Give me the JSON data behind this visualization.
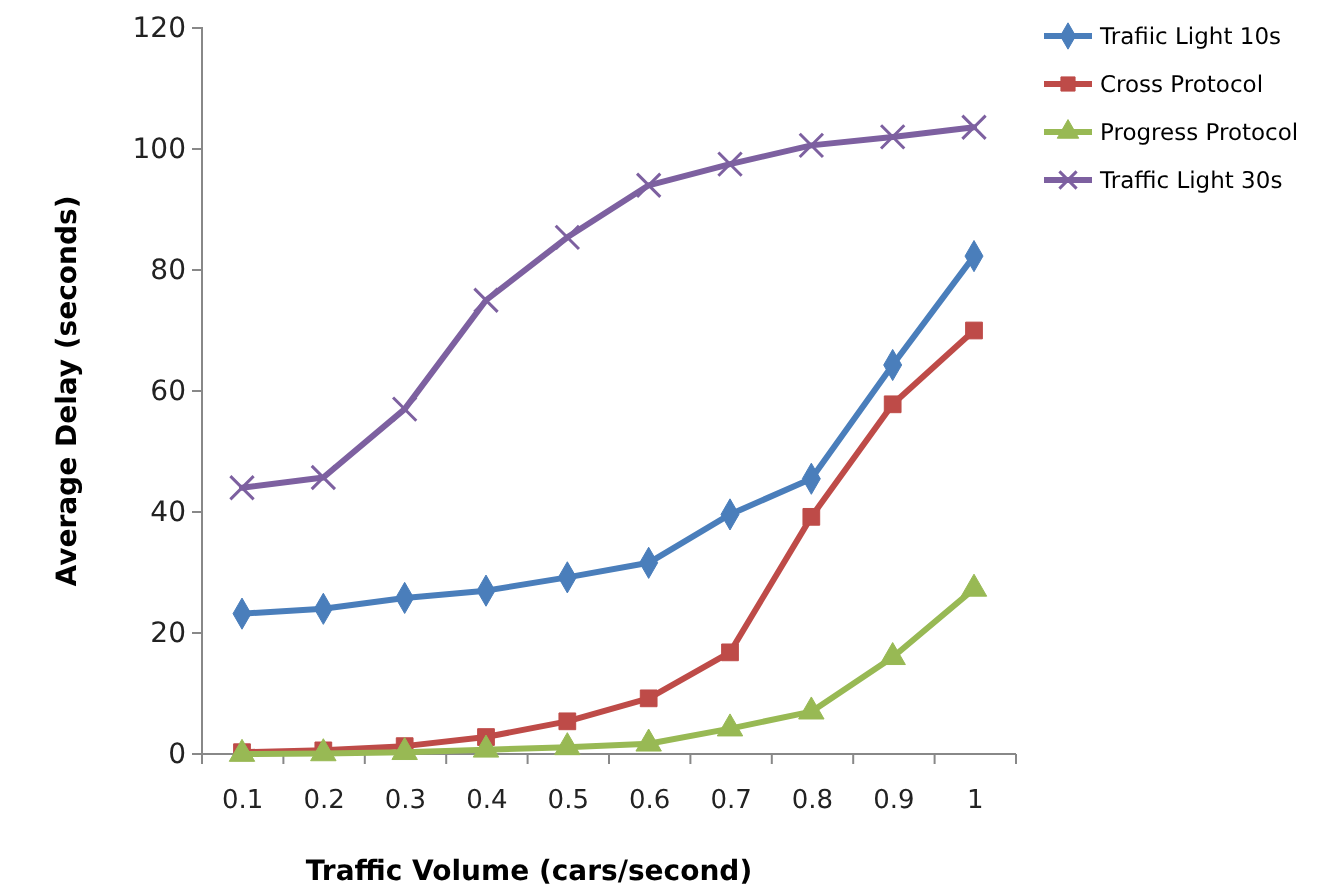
{
  "chart_data": {
    "type": "line",
    "xlabel": "Traffic Volume (cars/second)",
    "ylabel": "Average Delay (seconds)",
    "categories": [
      "0.1",
      "0.2",
      "0.3",
      "0.4",
      "0.5",
      "0.6",
      "0.7",
      "0.8",
      "0.9",
      "1"
    ],
    "ylim": [
      0,
      120
    ],
    "yticks": [
      0,
      20,
      40,
      60,
      80,
      100,
      120
    ],
    "grid": false,
    "legend": "right",
    "line_style": "solid",
    "series": [
      {
        "name": "Trafiic Light 10s",
        "color": "#4a7ebb",
        "marker": "diamond",
        "values": [
          23.2,
          24,
          25.8,
          27,
          29.2,
          31.6,
          39.6,
          45.5,
          64.3,
          82.3
        ]
      },
      {
        "name": "Cross Protocol",
        "color": "#be4b48",
        "marker": "square",
        "values": [
          0.3,
          0.6,
          1.3,
          2.8,
          5.4,
          9.2,
          16.8,
          39.2,
          57.8,
          70
        ]
      },
      {
        "name": "Progress Protocol",
        "color": "#98b954",
        "marker": "triangle",
        "values": [
          0,
          0.1,
          0.3,
          0.7,
          1.1,
          1.7,
          4.2,
          7,
          16,
          27.3
        ]
      },
      {
        "name": "Traffic Light 30s",
        "color": "#7d60a0",
        "marker": "cross",
        "values": [
          44,
          45.7,
          57,
          75,
          85.4,
          94,
          97.5,
          100.6,
          102,
          103.6
        ]
      }
    ]
  }
}
